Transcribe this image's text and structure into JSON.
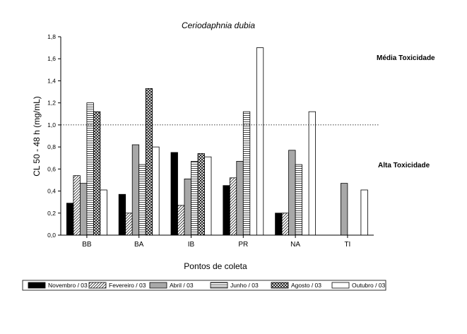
{
  "chart_data": {
    "type": "bar",
    "title": "Ceriodaphnia dubia",
    "xlabel": "Pontos de coleta",
    "ylabel": "CL 50 - 48 h (mg/mL)",
    "ylim": [
      0,
      1.8
    ],
    "yticks": [
      "0,0",
      "0,2",
      "0,4",
      "0,6",
      "0,8",
      "1,0",
      "1,2",
      "1,4",
      "1,6",
      "1,8"
    ],
    "categories": [
      "BB",
      "BA",
      "IB",
      "PR",
      "NA",
      "TI"
    ],
    "series": [
      {
        "name": "Novembro / 03",
        "values": [
          0.29,
          0.37,
          0.75,
          0.45,
          0.2,
          null
        ]
      },
      {
        "name": "Fevereiro / 03",
        "values": [
          0.54,
          0.2,
          0.27,
          0.52,
          0.2,
          null
        ]
      },
      {
        "name": "Abril / 03",
        "values": [
          0.47,
          0.82,
          0.51,
          0.67,
          0.77,
          0.47
        ]
      },
      {
        "name": "Junho / 03",
        "values": [
          1.2,
          0.64,
          0.67,
          1.12,
          0.64,
          null
        ]
      },
      {
        "name": "Agosto / 03",
        "values": [
          1.12,
          1.33,
          0.74,
          null,
          null,
          null
        ]
      },
      {
        "name": "Outubro / 03",
        "values": [
          0.41,
          0.8,
          0.71,
          1.7,
          1.12,
          0.41
        ]
      }
    ],
    "reference_line": 1.0,
    "annotations": [
      "Média Toxicidade",
      "Alta Toxicidade"
    ],
    "grid": false,
    "legend_position": "bottom"
  },
  "colors": {
    "novembro": "#000000",
    "abril": "#a8a8a8",
    "outline": "#000000",
    "background": "#ffffff"
  }
}
